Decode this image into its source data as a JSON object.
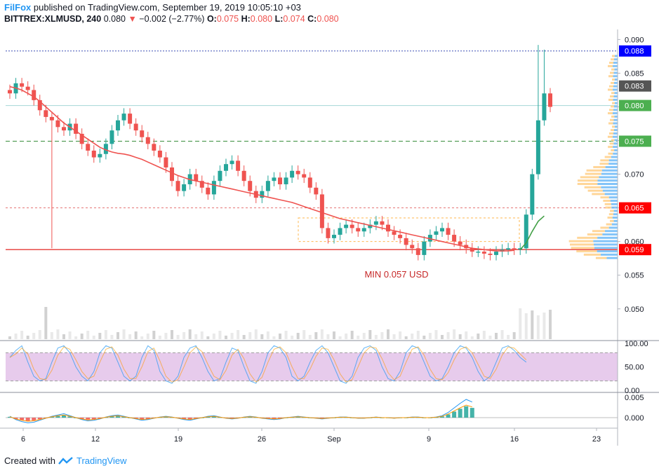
{
  "header": {
    "brand": "FilFox",
    "published": " published on TradingView.com, September 19, 2019 10:05:10 +03",
    "symbol": "BITTREX:XLMUSD, 240",
    "last": "0.080",
    "change_arrow": "▼",
    "change": "−0.002 (−2.77%)",
    "o_label": "O:",
    "o_value": "0.075",
    "h_label": "H:",
    "h_value": "0.080",
    "l_label": "L:",
    "l_value": "0.074",
    "c_label": "C:",
    "c_value": "0.080"
  },
  "footer": {
    "created_with": "Created with",
    "brand": "TradingView"
  },
  "colors": {
    "up": "#26a69a",
    "down": "#ef5350",
    "ma": "#ef5350",
    "axis": "#b2b5be",
    "stoch_band": "#e1bee7",
    "badge_blue": "#0000ff",
    "badge_gray": "#555555",
    "badge_green": "#4caf50",
    "badge_red": "#ff0000"
  },
  "chart_data": {
    "type": "candlestick",
    "x_ticks": [
      "6",
      "12",
      "19",
      "26",
      "Sep",
      "9",
      "16",
      "23"
    ],
    "y_ticks": [
      "0.090",
      "0.085",
      "0.080",
      "0.075",
      "0.070",
      "0.065",
      "0.060",
      "0.055",
      "0.050"
    ],
    "ylim": [
      0.0455,
      0.0915
    ],
    "price_badges": [
      {
        "label": "0.088",
        "value": 0.0883,
        "style": "blue"
      },
      {
        "label": "0.083",
        "value": 0.0831,
        "style": "gray"
      },
      {
        "label": "0.080",
        "value": 0.0802,
        "style": "green"
      },
      {
        "label": "0.075",
        "value": 0.0749,
        "style": "green"
      },
      {
        "label": "0.065",
        "value": 0.065,
        "style": "red"
      },
      {
        "label": "0.059",
        "value": 0.0588,
        "style": "red"
      }
    ],
    "annotation": "MIN 0.057 USD",
    "closes": [
      0.082,
      0.0835,
      0.083,
      0.0825,
      0.081,
      0.0795,
      0.0785,
      0.078,
      0.077,
      0.0765,
      0.0775,
      0.076,
      0.0745,
      0.0735,
      0.0725,
      0.073,
      0.0745,
      0.0765,
      0.078,
      0.079,
      0.0775,
      0.0765,
      0.0755,
      0.0745,
      0.0735,
      0.0725,
      0.071,
      0.069,
      0.0675,
      0.0685,
      0.07,
      0.069,
      0.068,
      0.067,
      0.069,
      0.0705,
      0.0715,
      0.072,
      0.0705,
      0.069,
      0.0675,
      0.0665,
      0.0675,
      0.069,
      0.0695,
      0.0685,
      0.0695,
      0.0705,
      0.07,
      0.0695,
      0.068,
      0.067,
      0.062,
      0.0605,
      0.061,
      0.062,
      0.0625,
      0.062,
      0.0615,
      0.062,
      0.0625,
      0.063,
      0.0625,
      0.0615,
      0.061,
      0.0605,
      0.0595,
      0.059,
      0.058,
      0.06,
      0.061,
      0.0615,
      0.062,
      0.061,
      0.06,
      0.0595,
      0.059,
      0.0585,
      0.0585,
      0.0582,
      0.058,
      0.0585,
      0.0588,
      0.059,
      0.0588,
      0.059,
      0.064,
      0.07,
      0.078,
      0.082,
      0.08
    ],
    "ma": [
      0.083,
      0.0828,
      0.0825,
      0.082,
      0.0815,
      0.0808,
      0.08,
      0.0792,
      0.0784,
      0.0776,
      0.077,
      0.0764,
      0.0758,
      0.0752,
      0.0746,
      0.074,
      0.0736,
      0.0733,
      0.0731,
      0.073,
      0.0728,
      0.0725,
      0.0722,
      0.0718,
      0.0714,
      0.071,
      0.0706,
      0.0702,
      0.0698,
      0.0695,
      0.0692,
      0.069,
      0.0688,
      0.0686,
      0.0684,
      0.0682,
      0.068,
      0.0678,
      0.0676,
      0.0674,
      0.0672,
      0.067,
      0.0668,
      0.0666,
      0.0664,
      0.0662,
      0.066,
      0.0658,
      0.0655,
      0.0652,
      0.0649,
      0.0646,
      0.0643,
      0.064,
      0.0637,
      0.0634,
      0.0632,
      0.063,
      0.0628,
      0.0626,
      0.0624,
      0.0622,
      0.062,
      0.0618,
      0.0616,
      0.0614,
      0.0612,
      0.061,
      0.0608,
      0.0606,
      0.0604,
      0.0602,
      0.06,
      0.0598,
      0.0596,
      0.0594,
      0.0592,
      0.059,
      0.0589,
      0.0588,
      0.0587,
      0.0586,
      0.0586,
      0.0586,
      0.0587
    ],
    "green_ma_tail": [
      0.0588,
      0.0598,
      0.0615,
      0.063,
      0.0638
    ],
    "stoch": {
      "y_ticks": [
        "100.00",
        "50.00",
        "0.00"
      ],
      "k": [
        70,
        85,
        95,
        60,
        30,
        20,
        25,
        60,
        90,
        95,
        80,
        50,
        30,
        20,
        40,
        80,
        95,
        90,
        60,
        30,
        20,
        30,
        70,
        95,
        85,
        40,
        20,
        15,
        30,
        70,
        90,
        95,
        70,
        40,
        20,
        25,
        60,
        90,
        85,
        50,
        20,
        15,
        40,
        80,
        95,
        90,
        70,
        30,
        20,
        30,
        60,
        85,
        95,
        80,
        50,
        20,
        15,
        30,
        70,
        90,
        95,
        85,
        50,
        25,
        20,
        40,
        80,
        95,
        90,
        60,
        30,
        20,
        25,
        50,
        80,
        95,
        90,
        70,
        40,
        20,
        30,
        60,
        90,
        95,
        85,
        70,
        60
      ]
    },
    "macd": {
      "y_ticks": [
        "0.005",
        "0.000"
      ],
      "hist": [
        0.0002,
        -0.0003,
        -0.0006,
        -0.0008,
        -0.0007,
        -0.0004,
        -0.0001,
        0.0002,
        0.0004,
        0.0006,
        0.0003,
        0.0,
        -0.0003,
        -0.0005,
        -0.0004,
        -0.0002,
        0.0001,
        0.0003,
        0.0004,
        0.0002,
        0.0,
        -0.0002,
        -0.0004,
        -0.0003,
        -0.0001,
        0.0001,
        0.0002,
        0.0001,
        -0.0001,
        -0.0003,
        -0.0004,
        -0.0002,
        0.0,
        0.0002,
        0.0003,
        0.0001,
        -0.0001,
        -0.0002,
        -0.0001,
        0.0001,
        0.0002,
        0.0001,
        -0.0001,
        -0.0002,
        -0.0003,
        -0.0002,
        0.0,
        0.0001,
        0.0002,
        0.0001,
        0.0,
        -0.0001,
        -0.0002,
        -0.0001,
        0.0,
        0.0001,
        0.0001,
        0.0,
        -0.0001,
        -0.0001,
        0.0,
        0.0001,
        0.0,
        0.0,
        -0.0001,
        0.0,
        0.0,
        0.0001,
        0.0001,
        0.0,
        0.0,
        0.0001,
        0.0003,
        0.0008,
        0.0015,
        0.0022,
        0.0028,
        0.0024
      ]
    }
  }
}
